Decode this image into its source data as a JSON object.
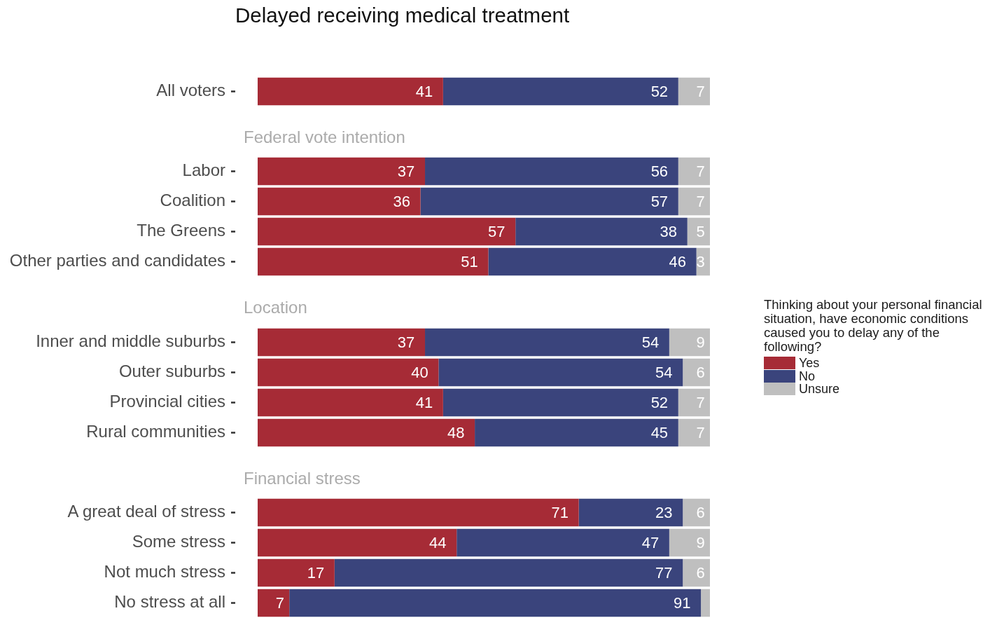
{
  "chart_data": [
    {
      "type": "bar",
      "title": "Delayed receiving medical treatment",
      "orientation": "horizontal",
      "stacked": true,
      "categories": [
        "All voters"
      ],
      "series": [
        {
          "color": "#a62b36",
          "values": [
            41
          ]
        },
        {
          "color": "#3a447c",
          "values": [
            52
          ]
        },
        {
          "color": "#bfbfbf",
          "values": [
            7
          ]
        }
      ],
      "tick_labels": "y",
      "data_labels": true
    },
    {
      "type": "bar",
      "title": "Federal vote intention",
      "orientation": "horizontal",
      "stacked": true,
      "categories": [
        "Labor",
        "Coalition",
        "The Greens",
        "Other parties and candidates"
      ],
      "series": [
        {
          "color": "#a62b36",
          "values": [
            37,
            36,
            57,
            51
          ]
        },
        {
          "color": "#3a447c",
          "values": [
            56,
            57,
            38,
            46
          ]
        },
        {
          "color": "#bfbfbf",
          "values": [
            7,
            7,
            5,
            3
          ]
        }
      ],
      "tick_labels": "y",
      "data_labels": true
    },
    {
      "type": "bar",
      "title": "Location",
      "orientation": "horizontal",
      "stacked": true,
      "legend": "right",
      "legend_title": "Thinking about your personal financial situation, have economic conditions caused you to delay any of the following?",
      "categories": [
        "Inner and middle suburbs",
        "Outer suburbs",
        "Provincial cities",
        "Rural communities"
      ],
      "series": [
        {
          "name": "Yes",
          "color": "#a62b36",
          "values": [
            37,
            40,
            41,
            48
          ]
        },
        {
          "name": "No",
          "color": "#3a447c",
          "values": [
            54,
            54,
            52,
            45
          ]
        },
        {
          "name": "Unsure",
          "color": "#bfbfbf",
          "values": [
            9,
            6,
            7,
            7
          ]
        }
      ],
      "tick_labels": "y",
      "data_labels": true
    },
    {
      "type": "bar",
      "title": "Financial stress",
      "orientation": "horizontal",
      "stacked": true,
      "categories": [
        "A great deal of stress",
        "Some stress",
        "Not much stress",
        "No stress at all"
      ],
      "series": [
        {
          "color": "#a62b36",
          "values": [
            71,
            44,
            17,
            7
          ],
          "value_labels": [
            "71",
            "44",
            "17",
            "7"
          ]
        },
        {
          "color": "#3a447c",
          "values": [
            23,
            47,
            77,
            91
          ],
          "value_labels": [
            "23",
            "47",
            "77",
            "91"
          ]
        },
        {
          "color": "#bfbfbf",
          "values": [
            6,
            9,
            6,
            2
          ],
          "value_labels": [
            "6",
            "9",
            "6",
            null
          ]
        }
      ],
      "tick_labels": "y"
    }
  ]
}
